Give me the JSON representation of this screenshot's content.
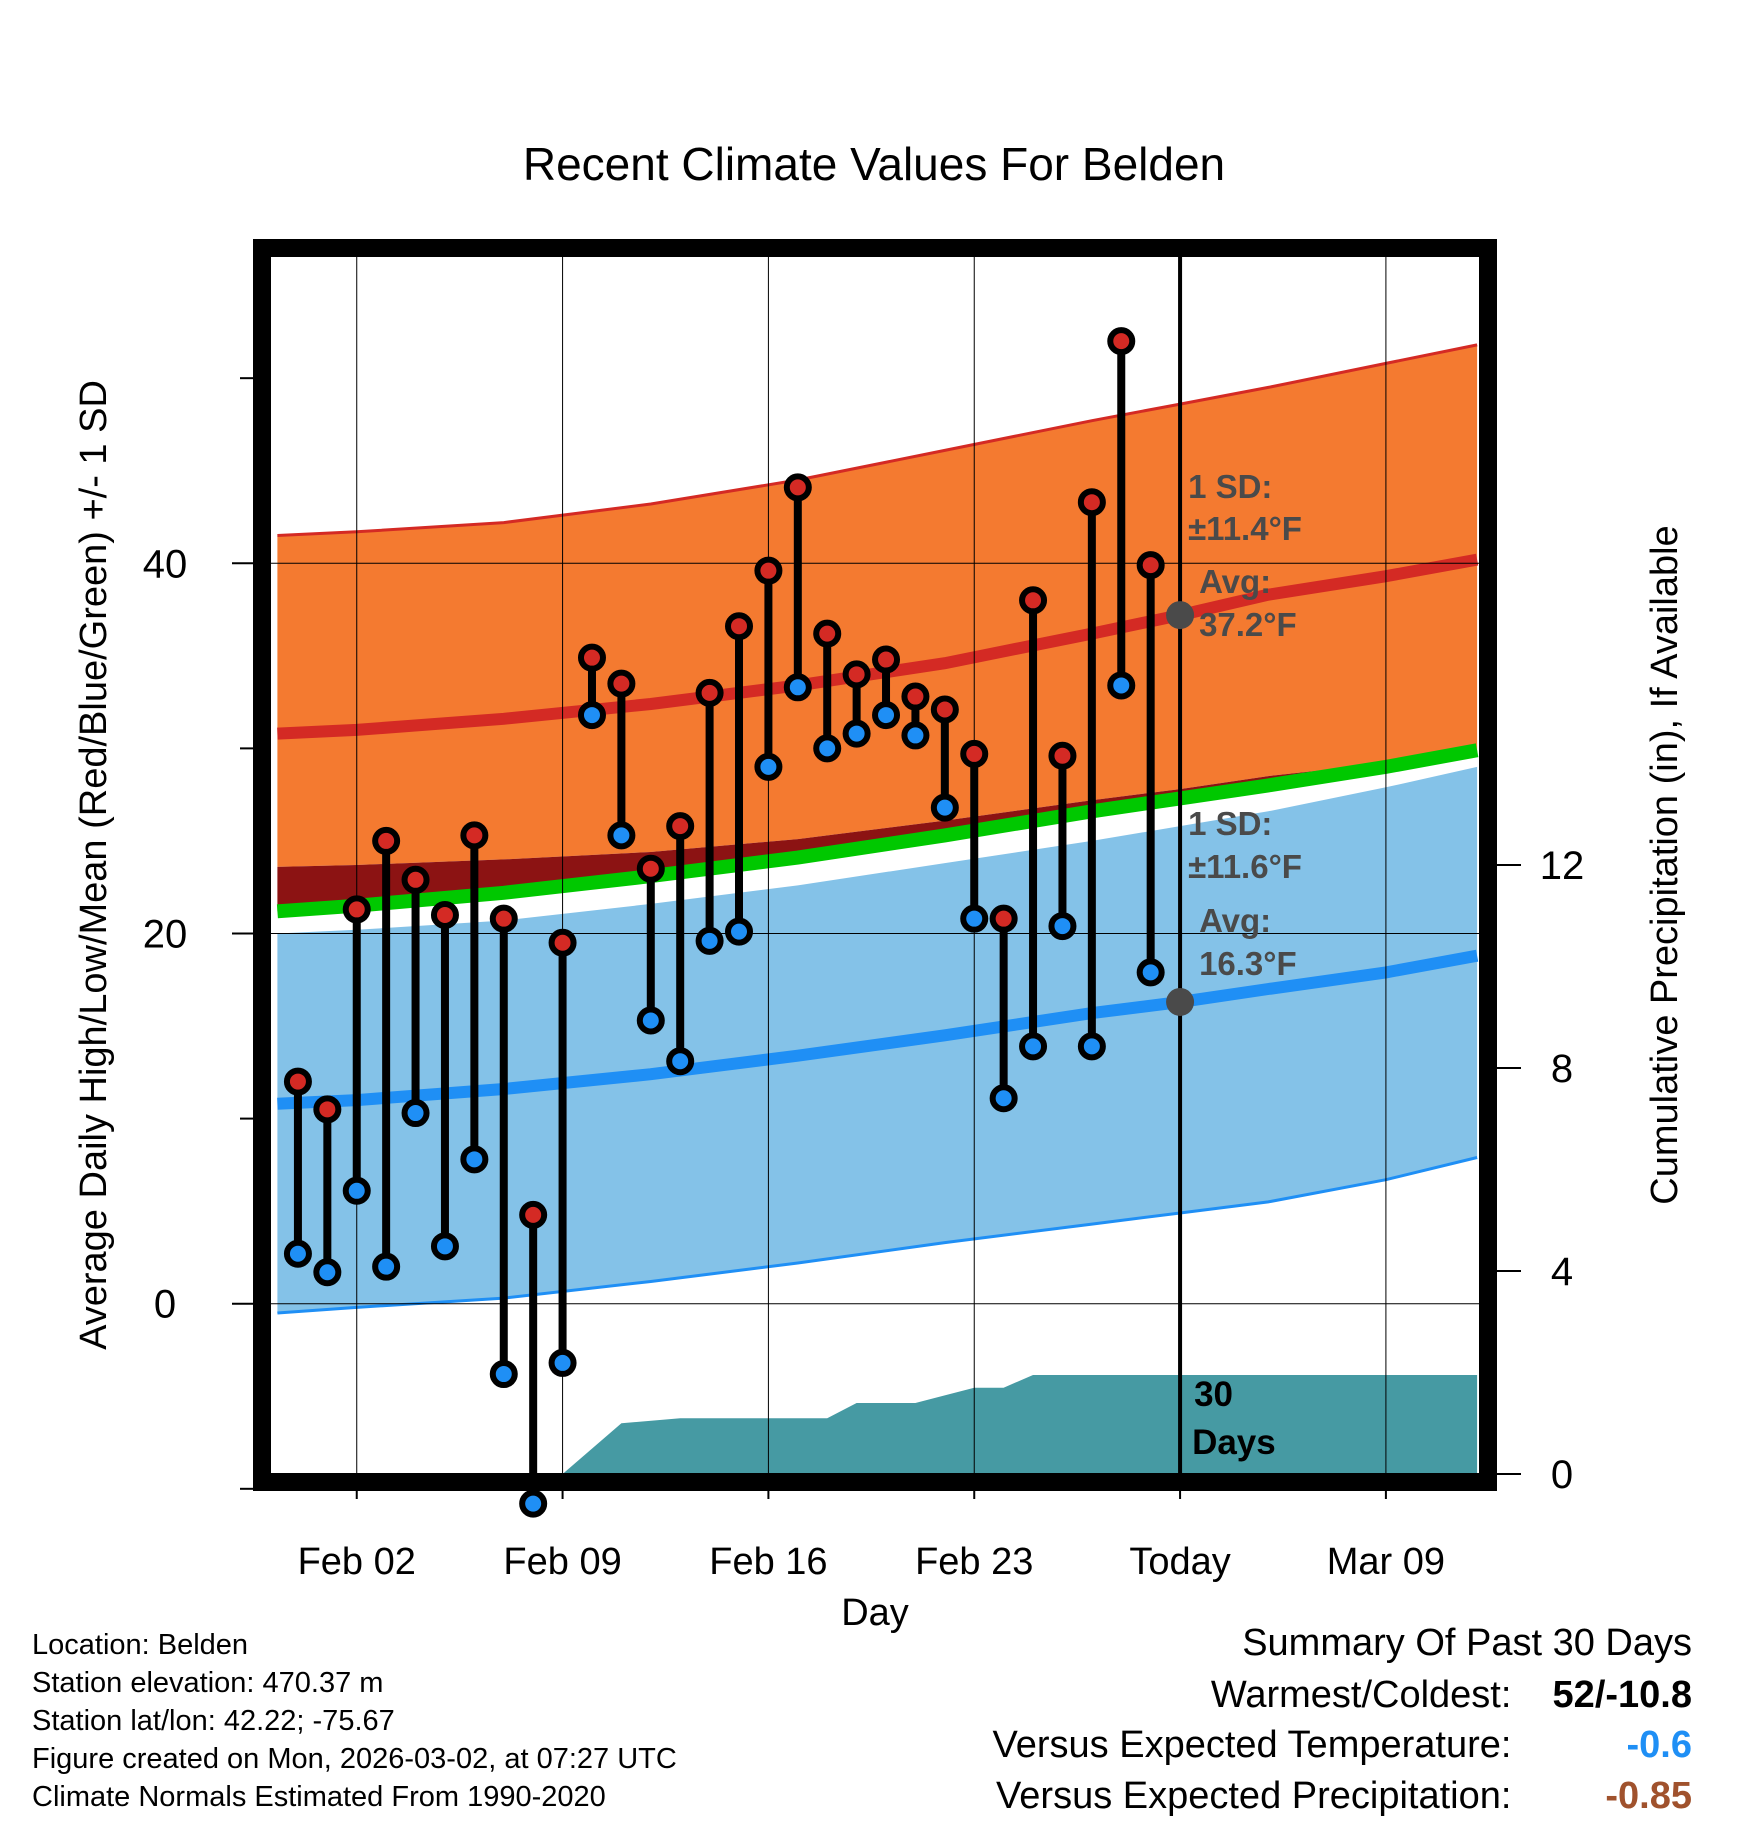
{
  "chart_data": {
    "type": "line",
    "title": "Recent Climate Values For Belden",
    "xlabel": "Day",
    "ylabel": "Average Daily High/Low/Mean (Red/Blue/Green) +/- 1 SD",
    "y2label": "Cumulative Precipitation (in), If Available",
    "xlim": [
      -2.95,
      38.2
    ],
    "ylim": [
      -9.2,
      56.6
    ],
    "y2lim": [
      0,
      24
    ],
    "x_ticks": [
      {
        "x": 0,
        "label": "Feb 02"
      },
      {
        "x": 7,
        "label": "Feb 09"
      },
      {
        "x": 14,
        "label": "Feb 16"
      },
      {
        "x": 21,
        "label": "Feb 23"
      },
      {
        "x": 28,
        "label": "Today"
      },
      {
        "x": 35,
        "label": "Mar 09"
      }
    ],
    "y_ticks": [
      0,
      20,
      40
    ],
    "y2_ticks": [
      0,
      4,
      8,
      12
    ],
    "today_x": 28,
    "days": [
      -2,
      -1,
      0,
      1,
      2,
      3,
      4,
      5,
      6,
      7,
      8,
      9,
      10,
      11,
      12,
      13,
      14,
      15,
      16,
      17,
      18,
      19,
      20,
      21,
      22,
      23,
      24,
      25,
      26,
      27
    ],
    "observed_high": [
      12.0,
      10.5,
      21.3,
      25.0,
      22.9,
      21.0,
      25.3,
      20.8,
      4.8,
      19.5,
      34.9,
      33.5,
      23.5,
      25.8,
      33.0,
      36.6,
      39.6,
      44.1,
      36.2,
      34.0,
      34.8,
      32.8,
      32.1,
      29.7,
      20.8,
      38.0,
      29.6,
      43.3,
      52.0,
      39.9
    ],
    "observed_low": [
      2.7,
      1.7,
      6.1,
      2.0,
      10.3,
      3.1,
      7.8,
      -3.8,
      -10.8,
      -3.2,
      31.8,
      25.3,
      15.3,
      13.1,
      19.6,
      20.1,
      29.0,
      33.3,
      30.0,
      30.8,
      31.8,
      30.7,
      26.8,
      20.8,
      11.1,
      13.9,
      20.4,
      13.9,
      33.4,
      17.9
    ],
    "normals_x": [
      -2.7,
      0,
      5,
      10,
      15,
      20,
      25,
      28,
      31,
      35,
      38.1
    ],
    "normal_high": [
      30.8,
      31.0,
      31.6,
      32.4,
      33.4,
      34.6,
      36.2,
      37.2,
      38.3,
      39.3,
      40.2
    ],
    "normal_high_upper": [
      41.5,
      41.7,
      42.2,
      43.2,
      44.5,
      46.1,
      47.7,
      48.6,
      49.5,
      50.8,
      51.8
    ],
    "normal_high_lower": [
      23.6,
      23.7,
      24.0,
      24.4,
      25.1,
      26.1,
      27.2,
      27.8,
      28.5,
      29.2,
      29.7
    ],
    "normal_mean": [
      21.2,
      21.5,
      22.2,
      23.1,
      24.1,
      25.3,
      26.6,
      27.3,
      28.0,
      29.0,
      29.9
    ],
    "normal_low": [
      10.8,
      11.0,
      11.6,
      12.4,
      13.4,
      14.5,
      15.7,
      16.3,
      17.0,
      17.9,
      18.8
    ],
    "normal_low_upper": [
      20.0,
      20.2,
      20.7,
      21.6,
      22.6,
      23.8,
      25.0,
      25.8,
      26.6,
      27.9,
      29.0
    ],
    "normal_low_lower": [
      -0.5,
      -0.2,
      0.3,
      1.2,
      2.2,
      3.3,
      4.3,
      4.9,
      5.5,
      6.7,
      7.9
    ],
    "precip_x": [
      7,
      9,
      11,
      16,
      17,
      19,
      21,
      22,
      23,
      24,
      25,
      38.1
    ],
    "precip_cum": [
      0,
      1.0,
      1.1,
      1.1,
      1.4,
      1.4,
      1.7,
      1.7,
      1.95,
      1.95,
      1.95,
      1.95
    ],
    "annotations": {
      "high_sd": "1 SD:",
      "high_sd_value": "±11.4°F",
      "high_avg": "Avg:",
      "high_avg_value": "37.2°F",
      "low_sd": "1 SD:",
      "low_sd_value": "±11.6°F",
      "low_avg": "Avg:",
      "low_avg_value": "16.3°F",
      "days_line1": "30",
      "days_line2": "Days"
    },
    "colors": {
      "orange_band": "#f47a30",
      "blue_band": "#84c2e8",
      "red_line": "#d42a24",
      "blue_line": "#1f8ff5",
      "green_band": "#00c800",
      "dark_red_band": "#8c1313",
      "precip": "#469aa3",
      "high_marker": "#d42a24",
      "low_marker": "#1f8ff5",
      "annotation": "#4a4a4a"
    }
  },
  "info": {
    "location": "Location: Belden",
    "elevation": "Station elevation: 470.37 m",
    "latlon": "Station lat/lon: 42.22; -75.67",
    "created": "Figure created on Mon, 2026-03-02, at 07:27 UTC",
    "normals": "Climate Normals Estimated From 1990-2020"
  },
  "summary": {
    "title": "Summary Of Past 30 Days",
    "warmest_label": "Warmest/Coldest:",
    "warmest_value": "52/-10.8",
    "temp_label": "Versus Expected Temperature:",
    "temp_value": "-0.6",
    "temp_color": "#1f8ff5",
    "precip_label": "Versus Expected Precipitation:",
    "precip_value": "-0.85",
    "precip_color": "#a0522d"
  }
}
